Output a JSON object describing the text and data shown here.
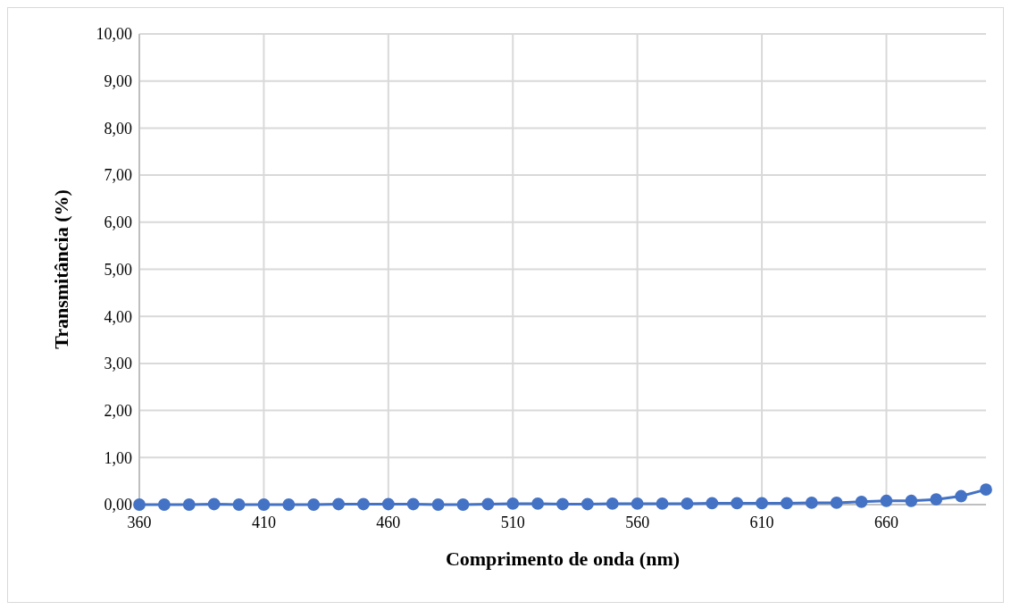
{
  "chart_data": {
    "type": "line",
    "xlabel": "Comprimento de onda (nm)",
    "ylabel": "Transmitância (%)",
    "x": [
      360,
      370,
      380,
      390,
      400,
      410,
      420,
      430,
      440,
      450,
      460,
      470,
      480,
      490,
      500,
      510,
      520,
      530,
      540,
      550,
      560,
      570,
      580,
      590,
      600,
      610,
      620,
      630,
      640,
      650,
      660,
      670,
      680,
      690,
      700
    ],
    "series": [
      {
        "color": "#4472c4",
        "values": [
          0.0,
          0.0,
          0.0,
          0.01,
          0.0,
          0.0,
          0.0,
          0.0,
          0.01,
          0.01,
          0.01,
          0.01,
          0.0,
          0.0,
          0.01,
          0.02,
          0.02,
          0.01,
          0.01,
          0.02,
          0.02,
          0.02,
          0.02,
          0.03,
          0.03,
          0.03,
          0.03,
          0.04,
          0.04,
          0.06,
          0.08,
          0.08,
          0.11,
          0.18,
          0.32
        ]
      }
    ],
    "xlim": [
      360,
      700
    ],
    "xticks": [
      360,
      410,
      460,
      510,
      560,
      610,
      660
    ],
    "ylim": [
      0,
      10
    ],
    "yticks": [
      {
        "value": 0,
        "label": "0,00"
      },
      {
        "value": 1,
        "label": "1,00"
      },
      {
        "value": 2,
        "label": "2,00"
      },
      {
        "value": 3,
        "label": "3,00"
      },
      {
        "value": 4,
        "label": "4,00"
      },
      {
        "value": 5,
        "label": "5,00"
      },
      {
        "value": 6,
        "label": "6,00"
      },
      {
        "value": 7,
        "label": "7,00"
      },
      {
        "value": 8,
        "label": "8,00"
      },
      {
        "value": 9,
        "label": "9,00"
      },
      {
        "value": 10,
        "label": "10,00"
      }
    ],
    "grid": true,
    "marker": "circle"
  }
}
